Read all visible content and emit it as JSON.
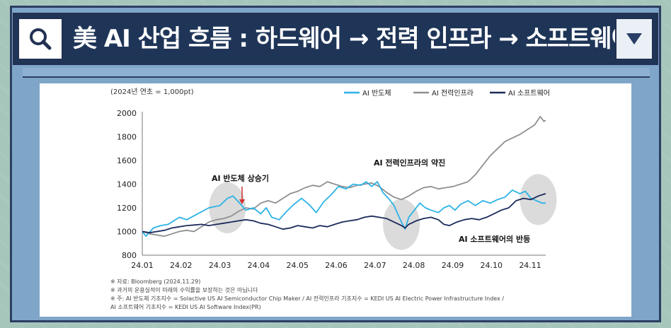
{
  "header": {
    "title": "美 AI 산업 흐름 : 하드웨어 → 전력 인프라 → 소프트웨어",
    "search_icon": "search-icon",
    "dropdown_icon": "triangle-down-icon"
  },
  "colors": {
    "titlebar": "#1f3558",
    "frame": "#7fa6c9",
    "semis": "#2cb3e6",
    "power": "#8f8f8f",
    "software": "#1c2a5a",
    "highlight": "#cfcfcf",
    "arrow": "#d0302f"
  },
  "chart_data": {
    "type": "line",
    "unit_note": "(2024년 연초 = 1,000pt)",
    "categories": [
      "24.01",
      "24.02",
      "24.03",
      "24.04",
      "24.05",
      "24.06",
      "24.07",
      "24.08",
      "24.09",
      "24.10",
      "24.11"
    ],
    "ylim": [
      800,
      2000
    ],
    "yticks": [
      800,
      1000,
      1200,
      1400,
      1600,
      1800,
      2000
    ],
    "x_range": [
      0,
      10.9
    ],
    "series": [
      {
        "name": "AI 반도체",
        "color": "#2cb3e6",
        "points": [
          [
            0,
            1000
          ],
          [
            0.1,
            960
          ],
          [
            0.3,
            1030
          ],
          [
            0.5,
            1050
          ],
          [
            0.7,
            1060
          ],
          [
            1.0,
            1120
          ],
          [
            1.2,
            1100
          ],
          [
            1.5,
            1150
          ],
          [
            1.8,
            1200
          ],
          [
            2.1,
            1220
          ],
          [
            2.3,
            1280
          ],
          [
            2.45,
            1300
          ],
          [
            2.6,
            1250
          ],
          [
            2.8,
            1180
          ],
          [
            3.0,
            1200
          ],
          [
            3.2,
            1150
          ],
          [
            3.35,
            1200
          ],
          [
            3.5,
            1120
          ],
          [
            3.7,
            1100
          ],
          [
            3.9,
            1170
          ],
          [
            4.1,
            1230
          ],
          [
            4.3,
            1280
          ],
          [
            4.5,
            1230
          ],
          [
            4.7,
            1160
          ],
          [
            4.9,
            1250
          ],
          [
            5.1,
            1310
          ],
          [
            5.3,
            1380
          ],
          [
            5.5,
            1360
          ],
          [
            5.7,
            1400
          ],
          [
            5.9,
            1390
          ],
          [
            6.05,
            1420
          ],
          [
            6.2,
            1380
          ],
          [
            6.35,
            1420
          ],
          [
            6.5,
            1330
          ],
          [
            6.65,
            1280
          ],
          [
            6.8,
            1220
          ],
          [
            6.9,
            1150
          ],
          [
            7.0,
            1080
          ],
          [
            7.1,
            1020
          ],
          [
            7.2,
            1120
          ],
          [
            7.35,
            1180
          ],
          [
            7.5,
            1240
          ],
          [
            7.65,
            1200
          ],
          [
            7.8,
            1180
          ],
          [
            8.0,
            1160
          ],
          [
            8.15,
            1200
          ],
          [
            8.3,
            1220
          ],
          [
            8.45,
            1180
          ],
          [
            8.6,
            1230
          ],
          [
            8.8,
            1260
          ],
          [
            9.0,
            1220
          ],
          [
            9.2,
            1260
          ],
          [
            9.4,
            1240
          ],
          [
            9.6,
            1270
          ],
          [
            9.8,
            1290
          ],
          [
            10.0,
            1350
          ],
          [
            10.2,
            1320
          ],
          [
            10.35,
            1340
          ],
          [
            10.5,
            1280
          ],
          [
            10.65,
            1260
          ],
          [
            10.8,
            1240
          ],
          [
            10.9,
            1240
          ]
        ]
      },
      {
        "name": "AI 전력인프라",
        "color": "#8f8f8f",
        "points": [
          [
            0,
            1000
          ],
          [
            0.2,
            980
          ],
          [
            0.4,
            970
          ],
          [
            0.6,
            960
          ],
          [
            0.8,
            980
          ],
          [
            1.0,
            1000
          ],
          [
            1.2,
            1010
          ],
          [
            1.4,
            1000
          ],
          [
            1.6,
            1040
          ],
          [
            1.8,
            1080
          ],
          [
            2.0,
            1100
          ],
          [
            2.2,
            1110
          ],
          [
            2.4,
            1130
          ],
          [
            2.6,
            1170
          ],
          [
            2.8,
            1200
          ],
          [
            3.0,
            1190
          ],
          [
            3.2,
            1240
          ],
          [
            3.4,
            1260
          ],
          [
            3.6,
            1240
          ],
          [
            3.8,
            1280
          ],
          [
            4.0,
            1320
          ],
          [
            4.2,
            1340
          ],
          [
            4.4,
            1370
          ],
          [
            4.6,
            1390
          ],
          [
            4.8,
            1380
          ],
          [
            5.0,
            1420
          ],
          [
            5.2,
            1400
          ],
          [
            5.4,
            1380
          ],
          [
            5.6,
            1370
          ],
          [
            5.8,
            1390
          ],
          [
            6.0,
            1400
          ],
          [
            6.2,
            1410
          ],
          [
            6.4,
            1380
          ],
          [
            6.6,
            1330
          ],
          [
            6.8,
            1290
          ],
          [
            7.0,
            1270
          ],
          [
            7.2,
            1300
          ],
          [
            7.4,
            1340
          ],
          [
            7.6,
            1370
          ],
          [
            7.8,
            1380
          ],
          [
            8.0,
            1360
          ],
          [
            8.2,
            1370
          ],
          [
            8.4,
            1380
          ],
          [
            8.6,
            1400
          ],
          [
            8.8,
            1420
          ],
          [
            9.0,
            1480
          ],
          [
            9.2,
            1560
          ],
          [
            9.4,
            1640
          ],
          [
            9.6,
            1700
          ],
          [
            9.8,
            1760
          ],
          [
            10.0,
            1790
          ],
          [
            10.2,
            1820
          ],
          [
            10.4,
            1860
          ],
          [
            10.6,
            1900
          ],
          [
            10.75,
            1970
          ],
          [
            10.85,
            1930
          ],
          [
            10.9,
            1940
          ]
        ]
      },
      {
        "name": "AI 소프트웨어",
        "color": "#1c2a5a",
        "points": [
          [
            0,
            1000
          ],
          [
            0.2,
            990
          ],
          [
            0.4,
            1000
          ],
          [
            0.6,
            1010
          ],
          [
            0.8,
            1030
          ],
          [
            1.0,
            1040
          ],
          [
            1.2,
            1050
          ],
          [
            1.4,
            1055
          ],
          [
            1.6,
            1060
          ],
          [
            1.8,
            1050
          ],
          [
            2.0,
            1060
          ],
          [
            2.2,
            1070
          ],
          [
            2.4,
            1080
          ],
          [
            2.6,
            1090
          ],
          [
            2.8,
            1100
          ],
          [
            3.0,
            1090
          ],
          [
            3.2,
            1070
          ],
          [
            3.4,
            1060
          ],
          [
            3.6,
            1040
          ],
          [
            3.8,
            1020
          ],
          [
            4.0,
            1030
          ],
          [
            4.2,
            1050
          ],
          [
            4.4,
            1040
          ],
          [
            4.6,
            1030
          ],
          [
            4.8,
            1050
          ],
          [
            5.0,
            1040
          ],
          [
            5.2,
            1060
          ],
          [
            5.4,
            1080
          ],
          [
            5.6,
            1090
          ],
          [
            5.8,
            1100
          ],
          [
            6.0,
            1120
          ],
          [
            6.2,
            1130
          ],
          [
            6.4,
            1120
          ],
          [
            6.6,
            1110
          ],
          [
            6.8,
            1080
          ],
          [
            7.0,
            1050
          ],
          [
            7.1,
            1030
          ],
          [
            7.2,
            1060
          ],
          [
            7.4,
            1090
          ],
          [
            7.6,
            1110
          ],
          [
            7.8,
            1120
          ],
          [
            8.0,
            1100
          ],
          [
            8.15,
            1060
          ],
          [
            8.3,
            1050
          ],
          [
            8.5,
            1080
          ],
          [
            8.7,
            1100
          ],
          [
            8.9,
            1110
          ],
          [
            9.1,
            1100
          ],
          [
            9.3,
            1120
          ],
          [
            9.5,
            1150
          ],
          [
            9.7,
            1180
          ],
          [
            9.9,
            1200
          ],
          [
            10.1,
            1260
          ],
          [
            10.3,
            1280
          ],
          [
            10.5,
            1270
          ],
          [
            10.7,
            1300
          ],
          [
            10.9,
            1320
          ]
        ]
      }
    ],
    "annotations": [
      {
        "id": "semis-rise",
        "text": "AI 반도체 상승기"
      },
      {
        "id": "power-leap",
        "text": "AI 전력인프라의 약진"
      },
      {
        "id": "software-rebound",
        "text": "AI 소프트웨어의 반등"
      }
    ],
    "highlight_ellipses": [
      {
        "cx": 2.3,
        "cy": 1200
      },
      {
        "cx": 7.0,
        "cy": 1060
      },
      {
        "cx": 10.7,
        "cy": 1270
      }
    ],
    "notes": [
      "※ 자료: Bloomberg (2024.11.29)",
      "※ 과거의 운용실적이 미래의 수익률을 보장하는 것은 아닙니다",
      "※ 주: AI 반도체 기초지수 = Solactive US AI Semiconductor Chip Maker / AI 전력인프라 기초지수 = KEDI US AI Electric Power Infrastructure Index /",
      "AI 소프트웨어 기초지수 = KEDI US AI Software Index(PR)"
    ]
  }
}
